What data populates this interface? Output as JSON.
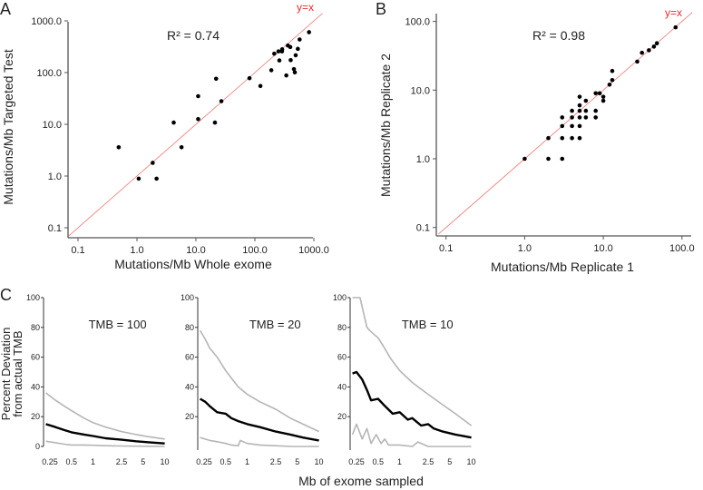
{
  "panel_labels": {
    "a": "A",
    "b": "B",
    "c": "C"
  },
  "chart_data": [
    {
      "type": "scatter",
      "panel": "A",
      "xlabel": "Mutations/Mb Whole exome",
      "ylabel": "Mutations/Mb Targeted Test",
      "xscale": "log",
      "yscale": "log",
      "xlim": [
        0.07,
        1000
      ],
      "ylim": [
        0.07,
        1000
      ],
      "xticks": [
        0.1,
        1,
        10,
        100,
        1000
      ],
      "xtick_labels": [
        "0.1",
        "1.0",
        "10.0",
        "100.0",
        "1000.0"
      ],
      "yticks": [
        0.1,
        1,
        10,
        100,
        1000
      ],
      "ytick_labels": [
        "0.1",
        "1.0",
        "10.0",
        "100.0",
        "1000.0"
      ],
      "annotation": "R² = 0.74",
      "reference_line": {
        "label": "y=x",
        "color": "#f08080"
      },
      "points": [
        [
          0.49,
          3.6
        ],
        [
          1.07,
          0.89
        ],
        [
          1.85,
          1.8
        ],
        [
          2.15,
          0.89
        ],
        [
          4.2,
          10.8
        ],
        [
          5.7,
          3.6
        ],
        [
          10.9,
          35
        ],
        [
          10.9,
          12.6
        ],
        [
          21,
          10.8
        ],
        [
          22,
          76
        ],
        [
          27,
          28
        ],
        [
          81,
          78
        ],
        [
          124,
          55
        ],
        [
          190,
          111
        ],
        [
          213,
          232
        ],
        [
          251,
          257
        ],
        [
          260,
          172
        ],
        [
          288,
          257
        ],
        [
          290,
          282
        ],
        [
          341,
          88
        ],
        [
          362,
          334
        ],
        [
          398,
          312
        ],
        [
          405,
          174
        ],
        [
          459,
          117
        ],
        [
          476,
          101
        ],
        [
          492,
          216
        ],
        [
          535,
          288
        ],
        [
          574,
          437
        ],
        [
          828,
          605
        ]
      ]
    },
    {
      "type": "scatter",
      "panel": "B",
      "xlabel": "Mutations/Mb Replicate 1",
      "ylabel": "Mutations/Mb Replicate 2",
      "xscale": "log",
      "yscale": "log",
      "xlim": [
        0.08,
        130
      ],
      "ylim": [
        0.08,
        130
      ],
      "xticks": [
        0.1,
        1,
        10,
        100
      ],
      "xtick_labels": [
        "0.1",
        "1.0",
        "10.0",
        "100.0"
      ],
      "yticks": [
        0.1,
        1,
        10,
        100
      ],
      "ytick_labels": [
        "0.1",
        "1.0",
        "10.0",
        "100.0"
      ],
      "annotation": "R² = 0.98",
      "reference_line": {
        "label": "y=x",
        "color": "#f08080"
      },
      "points": [
        [
          1,
          1
        ],
        [
          2,
          2
        ],
        [
          2,
          1
        ],
        [
          3,
          1
        ],
        [
          3,
          2
        ],
        [
          3,
          3
        ],
        [
          3,
          4
        ],
        [
          4,
          2
        ],
        [
          4,
          3
        ],
        [
          4,
          4
        ],
        [
          4,
          5
        ],
        [
          5,
          2
        ],
        [
          5,
          3
        ],
        [
          5,
          4
        ],
        [
          5,
          5
        ],
        [
          5,
          6
        ],
        [
          5,
          8
        ],
        [
          6,
          4
        ],
        [
          6,
          5
        ],
        [
          6,
          7
        ],
        [
          8,
          4
        ],
        [
          8,
          5
        ],
        [
          8,
          9
        ],
        [
          9,
          9
        ],
        [
          10,
          8
        ],
        [
          10,
          7
        ],
        [
          12,
          12
        ],
        [
          13,
          14
        ],
        [
          13,
          19
        ],
        [
          27,
          26
        ],
        [
          31,
          35
        ],
        [
          38,
          38
        ],
        [
          44,
          43
        ],
        [
          48,
          48
        ],
        [
          83,
          82
        ]
      ]
    },
    {
      "type": "line",
      "panel": "C",
      "ylabel_lines": [
        "Percent Deviation",
        "from actual TMB"
      ],
      "xlabel": "Mb of exome sampled",
      "xscale": "log",
      "xticks": [
        0.25,
        0.5,
        1,
        2.5,
        5,
        10
      ],
      "xtick_labels": [
        "0.25",
        "0.5",
        "1",
        "2.5",
        "5",
        "10"
      ],
      "colors": {
        "median": "#000000",
        "bounds": "#b5b5b5"
      },
      "subplots": [
        {
          "title": "TMB = 100",
          "yticks": [
            0,
            20,
            40,
            60,
            80,
            100
          ],
          "series": [
            {
              "name": "upper",
              "x": [
                0.22,
                0.3,
                0.4,
                0.5,
                0.75,
                1,
                1.5,
                2.5,
                4,
                6,
                10
              ],
              "y": [
                36,
                31,
                27,
                24,
                19,
                16,
                13,
                10,
                8,
                6.5,
                5
              ]
            },
            {
              "name": "median",
              "x": [
                0.22,
                0.3,
                0.4,
                0.5,
                0.75,
                1,
                1.5,
                2.5,
                4,
                6,
                10
              ],
              "y": [
                15,
                13,
                11,
                9.5,
                8,
                7,
                5.5,
                4.5,
                3.5,
                2.8,
                2
              ]
            },
            {
              "name": "lower",
              "x": [
                0.22,
                0.3,
                0.4,
                0.5,
                0.75,
                1,
                1.5,
                2.5,
                4,
                6,
                10
              ],
              "y": [
                3.5,
                2.5,
                1.5,
                1,
                1,
                0.8,
                0.5,
                0.3,
                0.2,
                0.1,
                0
              ]
            }
          ]
        },
        {
          "title": "TMB = 20",
          "yticks": [
            20,
            40,
            60,
            80,
            100
          ],
          "series": [
            {
              "name": "upper",
              "x": [
                0.22,
                0.26,
                0.3,
                0.38,
                0.5,
                0.6,
                0.75,
                1,
                1.5,
                2.5,
                4,
                6,
                10
              ],
              "y": [
                78,
                72,
                66,
                60,
                51,
                46,
                40,
                35,
                30,
                25,
                19,
                15,
                10
              ]
            },
            {
              "name": "median",
              "x": [
                0.22,
                0.26,
                0.3,
                0.38,
                0.5,
                0.6,
                0.75,
                1,
                1.5,
                2.5,
                4,
                6,
                10
              ],
              "y": [
                32,
                30,
                27,
                23,
                22,
                19,
                17,
                15,
                13,
                10,
                8,
                6,
                4
              ]
            },
            {
              "name": "lower",
              "x": [
                0.22,
                0.3,
                0.4,
                0.5,
                0.6,
                0.75,
                0.8,
                1,
                1.5,
                2.5,
                4,
                10
              ],
              "y": [
                6,
                4,
                3,
                2,
                1,
                0.5,
                4,
                2,
                1,
                0.5,
                0,
                0
              ]
            }
          ]
        },
        {
          "title": "TMB = 10",
          "yticks": [
            20,
            40,
            60,
            80,
            100
          ],
          "series": [
            {
              "name": "upper",
              "x": [
                0.22,
                0.28,
                0.35,
                0.4,
                0.5,
                0.6,
                0.75,
                1,
                1.5,
                2.5,
                4,
                6,
                10
              ],
              "y": [
                100,
                100,
                80,
                77,
                73,
                67,
                59,
                51,
                43,
                35,
                28,
                22,
                14
              ]
            },
            {
              "name": "median",
              "x": [
                0.22,
                0.25,
                0.3,
                0.35,
                0.4,
                0.5,
                0.6,
                0.8,
                1,
                1.3,
                1.5,
                2,
                2.5,
                3,
                4,
                6,
                10
              ],
              "y": [
                49,
                50,
                45,
                38,
                31,
                32,
                28,
                22,
                23,
                18,
                19,
                14,
                15,
                12,
                10,
                8,
                6
              ]
            },
            {
              "name": "lower",
              "x": [
                0.22,
                0.25,
                0.3,
                0.35,
                0.4,
                0.47,
                0.55,
                0.62,
                0.7,
                1,
                1.5,
                1.8,
                2.5,
                10
              ],
              "y": [
                8,
                15,
                5,
                12,
                2,
                8,
                2,
                5,
                1,
                1,
                0,
                3,
                0,
                0
              ]
            }
          ]
        }
      ]
    }
  ]
}
